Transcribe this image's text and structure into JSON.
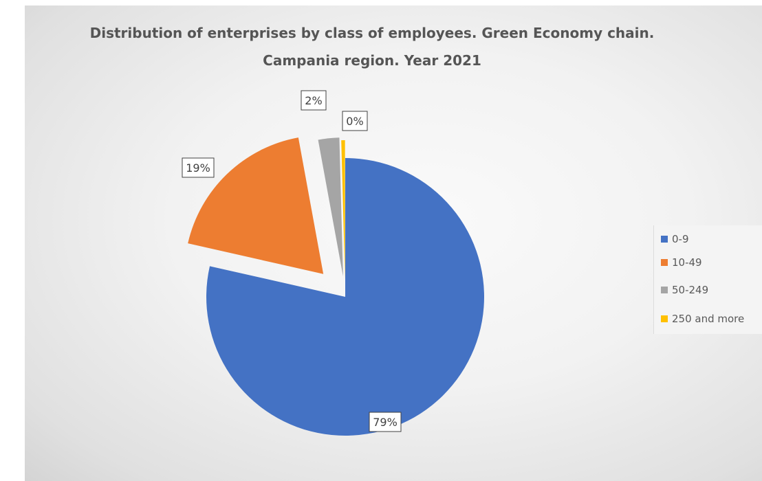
{
  "chart_data": {
    "type": "pie",
    "title": "Distribution of enterprises by class of employees. Green Economy chain. Campania region. Year 2021",
    "title_lines": [
      "Distribution of enterprises by class of employees. Green Economy chain.",
      "Campania region. Year 2021"
    ],
    "categories": [
      "0-9",
      "10-49",
      "50-249",
      "250 and more"
    ],
    "values": [
      79,
      19,
      2,
      0
    ],
    "slice_fractions": [
      0.7855,
      0.1857,
      0.0245,
      0.0043
    ],
    "data_labels": [
      "79%",
      "19%",
      "2%",
      "0%"
    ],
    "colors": [
      "#4472C4",
      "#ED7D31",
      "#A5A5A5",
      "#FFC000"
    ],
    "exploded": [
      false,
      true,
      true,
      true
    ],
    "legend_position": "right"
  }
}
